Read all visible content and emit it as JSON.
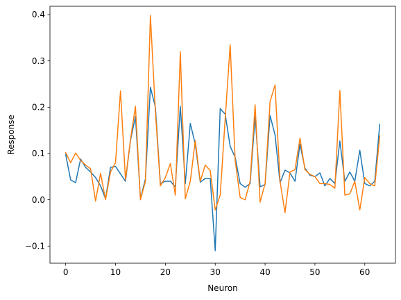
{
  "chart_data": {
    "type": "line",
    "xlabel": "Neuron",
    "ylabel": "Response",
    "xlim": [
      -3.15,
      66.15
    ],
    "ylim": [
      -0.137,
      0.418
    ],
    "xticks": [
      0,
      10,
      20,
      30,
      40,
      50,
      60
    ],
    "xtick_labels": [
      "0",
      "10",
      "20",
      "30",
      "40",
      "50",
      "60"
    ],
    "yticks": [
      -0.1,
      0.0,
      0.1,
      0.2,
      0.3,
      0.4
    ],
    "ytick_labels": [
      "−0.1",
      "0.0",
      "0.1",
      "0.2",
      "0.3",
      "0.4"
    ],
    "grid": false,
    "x": [
      0,
      1,
      2,
      3,
      4,
      5,
      6,
      7,
      8,
      9,
      10,
      11,
      12,
      13,
      14,
      15,
      16,
      17,
      18,
      19,
      20,
      21,
      22,
      23,
      24,
      25,
      26,
      27,
      28,
      29,
      30,
      31,
      32,
      33,
      34,
      35,
      36,
      37,
      38,
      39,
      40,
      41,
      42,
      43,
      44,
      45,
      46,
      47,
      48,
      49,
      50,
      51,
      52,
      53,
      54,
      55,
      56,
      57,
      58,
      59,
      60,
      61,
      62,
      63
    ],
    "series": [
      {
        "color": "#1f77b4",
        "values": [
          0.098,
          0.043,
          0.037,
          0.088,
          0.07,
          0.06,
          0.048,
          0.03,
          0.002,
          0.07,
          0.072,
          0.056,
          0.04,
          0.128,
          0.18,
          0.002,
          0.045,
          0.243,
          0.2,
          0.035,
          0.04,
          0.04,
          0.028,
          0.202,
          0.035,
          0.165,
          0.12,
          0.038,
          0.046,
          0.046,
          -0.11,
          0.197,
          0.185,
          0.115,
          0.092,
          0.035,
          0.027,
          0.035,
          0.18,
          0.028,
          0.033,
          0.182,
          0.14,
          0.037,
          0.064,
          0.058,
          0.04,
          0.12,
          0.068,
          0.053,
          0.05,
          0.058,
          0.03,
          0.046,
          0.035,
          0.127,
          0.04,
          0.06,
          0.04,
          0.107,
          0.035,
          0.03,
          0.04,
          0.163
        ]
      },
      {
        "color": "#ff7f0e",
        "values": [
          0.102,
          0.08,
          0.101,
          0.085,
          0.075,
          0.067,
          -0.003,
          0.057,
          0.0,
          0.06,
          0.08,
          0.235,
          0.043,
          0.13,
          0.202,
          0.0,
          0.04,
          0.398,
          0.19,
          0.03,
          0.048,
          0.078,
          0.01,
          0.32,
          0.002,
          0.04,
          0.128,
          0.04,
          0.075,
          0.063,
          -0.022,
          0.01,
          0.175,
          0.335,
          0.085,
          0.005,
          0.0,
          0.04,
          0.205,
          -0.005,
          0.035,
          0.212,
          0.248,
          0.04,
          -0.028,
          0.06,
          0.065,
          0.133,
          0.065,
          0.055,
          0.05,
          0.035,
          0.035,
          0.033,
          0.025,
          0.236,
          0.01,
          0.013,
          0.04,
          -0.022,
          0.048,
          0.035,
          0.03,
          0.138
        ]
      }
    ]
  }
}
